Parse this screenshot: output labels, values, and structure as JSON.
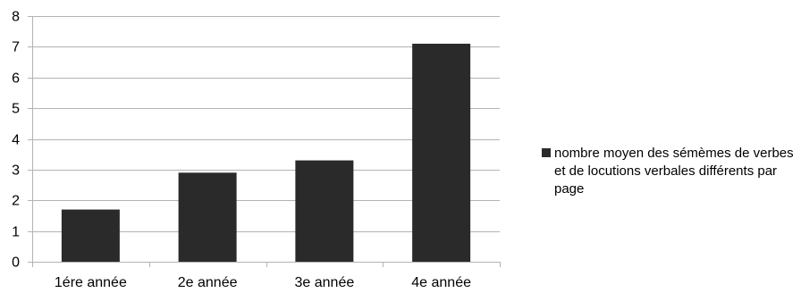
{
  "chart_data": {
    "type": "bar",
    "categories": [
      "1ére année",
      "2e année",
      "3e année",
      "4e année"
    ],
    "series": [
      {
        "name": "nombre moyen des sémèmes de verbes et de locutions verbales différents par page",
        "values": [
          1.7,
          2.9,
          3.3,
          7.1
        ],
        "color": "#2a2a2a"
      }
    ],
    "ylim": [
      0,
      8
    ],
    "yticks": [
      0,
      1,
      2,
      3,
      4,
      5,
      6,
      7,
      8
    ],
    "grid": true,
    "legend_position": "right"
  }
}
